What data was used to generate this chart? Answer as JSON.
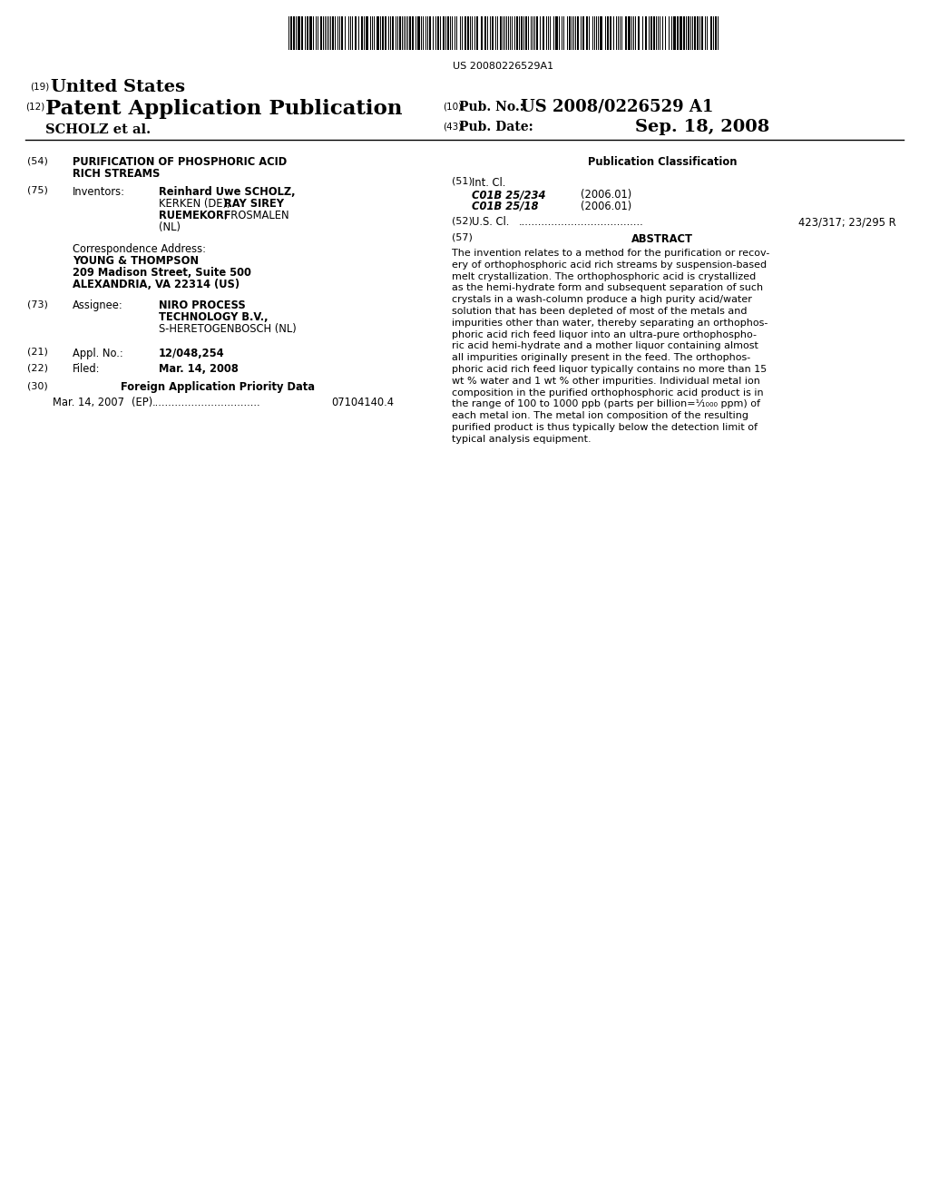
{
  "bg_color": "#ffffff",
  "barcode_text": "US 20080226529A1",
  "tag19": "(19)",
  "united_states": "United States",
  "tag12": "(12)",
  "patent_app_pub": "Patent Application Publication",
  "scholz_et_al": "SCHOLZ et al.",
  "tag10": "(10)",
  "pub_no_label": "Pub. No.:",
  "pub_no_value": "US 2008/0226529 A1",
  "tag43": "(43)",
  "pub_date_label": "Pub. Date:",
  "pub_date_value": "Sep. 18, 2008",
  "tag54": "(54)",
  "title_line1": "PURIFICATION OF PHOSPHORIC ACID",
  "title_line2": "RICH STREAMS",
  "tag75": "(75)",
  "inventors_label": "Inventors:",
  "inventors_text_line1": "Reinhard Uwe SCHOLZ,",
  "inventors_text_line2_a": "KERKEN (DE); ",
  "inventors_text_line2_b": "RAY SIREY",
  "inventors_text_line3": "RUEMEKORF",
  "inventors_text_line3_b": ", ROSMALEN",
  "inventors_text_line4": "(NL)",
  "corr_addr_line1": "Correspondence Address:",
  "corr_addr_line2": "YOUNG & THOMPSON",
  "corr_addr_line3": "209 Madison Street, Suite 500",
  "corr_addr_line4": "ALEXANDRIA, VA 22314 (US)",
  "tag73": "(73)",
  "assignee_label": "Assignee:",
  "assignee_line1": "NIRO PROCESS",
  "assignee_line2": "TECHNOLOGY B.V.,",
  "assignee_line3": "S-HERETOGENBOSCH (NL)",
  "tag21": "(21)",
  "appl_no_label": "Appl. No.:",
  "appl_no_value": "12/048,254",
  "tag22": "(22)",
  "filed_label": "Filed:",
  "filed_value": "Mar. 14, 2008",
  "tag30": "(30)",
  "foreign_app_title": "Foreign Application Priority Data",
  "foreign_app_date": "Mar. 14, 2007",
  "foreign_app_ep": "(EP)",
  "foreign_app_dots": ".................................",
  "foreign_app_num": "07104140.4",
  "pub_class_title": "Publication Classification",
  "tag51": "(51)",
  "int_cl_label": "Int. Cl.",
  "int_cl_line1": "C01B 25/234",
  "int_cl_line1_date": "(2006.01)",
  "int_cl_line2": "C01B 25/18",
  "int_cl_line2_date": "(2006.01)",
  "tag52": "(52)",
  "us_cl_label": "U.S. Cl.",
  "us_cl_dots": "......................................",
  "us_cl_value": "423/317; 23/295 R",
  "tag57": "(57)",
  "abstract_title": "ABSTRACT",
  "abstract_lines": [
    "The invention relates to a method for the purification or recov-",
    "ery of orthophosphoric acid rich streams by suspension-based",
    "melt crystallization. The orthophosphoric acid is crystallized",
    "as the hemi-hydrate form and subsequent separation of such",
    "crystals in a wash-column produce a high purity acid/water",
    "solution that has been depleted of most of the metals and",
    "impurities other than water, thereby separating an orthophos-",
    "phoric acid rich feed liquor into an ultra-pure orthophospho-",
    "ric acid hemi-hydrate and a mother liquor containing almost",
    "all impurities originally present in the feed. The orthophos-",
    "phoric acid rich feed liquor typically contains no more than 15",
    "wt % water and 1 wt % other impurities. Individual metal ion",
    "composition in the purified orthophosphoric acid product is in",
    "the range of 100 to 1000 ppb (parts per billion=¹⁄₁₀₀₀ ppm) of",
    "each metal ion. The metal ion composition of the resulting",
    "purified product is thus typically below the detection limit of",
    "typical analysis equipment."
  ]
}
